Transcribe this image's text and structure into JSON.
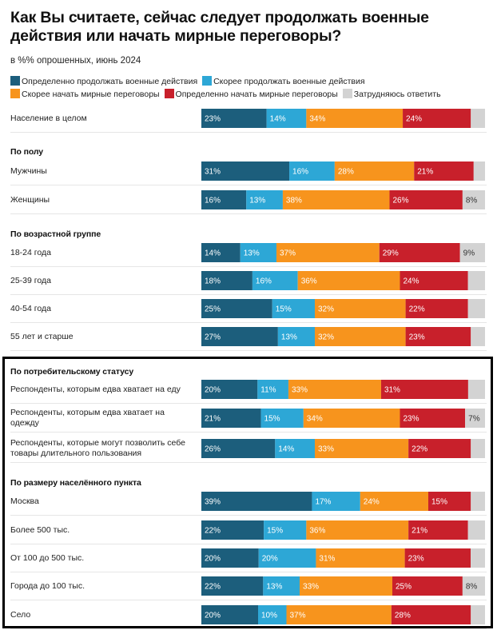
{
  "chart_data": {
    "type": "bar",
    "orientation": "horizontal",
    "stacked": true,
    "title": "Как Вы считаете, сейчас следует продолжать военные действия или начать мирные переговоры?",
    "subtitle": "в %% опрошенных, июнь 2024",
    "xlim": [
      0,
      100
    ],
    "grid": false,
    "legend_position": "top",
    "series": [
      {
        "name": "Определенно продолжать военные действия",
        "color": "#1c5e7c"
      },
      {
        "name": "Скорее продолжать военные действия",
        "color": "#2da7d6"
      },
      {
        "name": "Скорее начать мирные переговоры",
        "color": "#f7941d"
      },
      {
        "name": "Определенно начать мирные переговоры",
        "color": "#c8202b"
      },
      {
        "name": "Затрудняюсь ответить",
        "color": "#d3d3d3"
      }
    ],
    "groups": [
      {
        "title": "",
        "rows": [
          {
            "label": "Население в целом",
            "values": [
              23,
              14,
              34,
              24,
              5
            ],
            "labels": [
              "23%",
              "14%",
              "34%",
              "24%",
              ""
            ]
          }
        ]
      },
      {
        "title": "По полу",
        "rows": [
          {
            "label": "Мужчины",
            "values": [
              31,
              16,
              28,
              21,
              4
            ],
            "labels": [
              "31%",
              "16%",
              "28%",
              "21%",
              ""
            ]
          },
          {
            "label": "Женщины",
            "values": [
              16,
              13,
              38,
              26,
              8
            ],
            "labels": [
              "16%",
              "13%",
              "38%",
              "26%",
              "8%"
            ]
          }
        ]
      },
      {
        "title": "По возрастной группе",
        "rows": [
          {
            "label": "18-24 года",
            "values": [
              14,
              13,
              37,
              29,
              9
            ],
            "labels": [
              "14%",
              "13%",
              "37%",
              "29%",
              "9%"
            ]
          },
          {
            "label": "25-39 года",
            "values": [
              18,
              16,
              36,
              24,
              6
            ],
            "labels": [
              "18%",
              "16%",
              "36%",
              "24%",
              ""
            ]
          },
          {
            "label": "40-54 года",
            "values": [
              25,
              15,
              32,
              22,
              6
            ],
            "labels": [
              "25%",
              "15%",
              "32%",
              "22%",
              ""
            ]
          },
          {
            "label": "55 лет и старше",
            "values": [
              27,
              13,
              32,
              23,
              5
            ],
            "labels": [
              "27%",
              "13%",
              "32%",
              "23%",
              ""
            ]
          }
        ]
      },
      {
        "title": "По потребительскому статусу",
        "rows": [
          {
            "label": "Респонденты, которым едва хватает на еду",
            "values": [
              20,
              11,
              33,
              31,
              6
            ],
            "labels": [
              "20%",
              "11%",
              "33%",
              "31%",
              ""
            ]
          },
          {
            "label": "Респонденты, которым едва хватает на одежду",
            "values": [
              21,
              15,
              34,
              23,
              7
            ],
            "labels": [
              "21%",
              "15%",
              "34%",
              "23%",
              "7%"
            ]
          },
          {
            "label": "Респонденты, которые могут позволить себе товары длительного пользования",
            "values": [
              26,
              14,
              33,
              22,
              5
            ],
            "labels": [
              "26%",
              "14%",
              "33%",
              "22%",
              ""
            ]
          }
        ]
      },
      {
        "title": "По размеру населённого пункта",
        "rows": [
          {
            "label": "Москва",
            "values": [
              39,
              17,
              24,
              15,
              5
            ],
            "labels": [
              "39%",
              "17%",
              "24%",
              "15%",
              ""
            ]
          },
          {
            "label": "Более 500 тыс.",
            "values": [
              22,
              15,
              36,
              21,
              6
            ],
            "labels": [
              "22%",
              "15%",
              "36%",
              "21%",
              ""
            ]
          },
          {
            "label": "От 100 до 500 тыс.",
            "values": [
              20,
              20,
              31,
              23,
              5
            ],
            "labels": [
              "20%",
              "20%",
              "31%",
              "23%",
              ""
            ]
          },
          {
            "label": "Города до 100 тыс.",
            "values": [
              22,
              13,
              33,
              25,
              8
            ],
            "labels": [
              "22%",
              "13%",
              "33%",
              "25%",
              "8%"
            ]
          },
          {
            "label": "Село",
            "values": [
              20,
              10,
              37,
              28,
              5
            ],
            "labels": [
              "20%",
              "10%",
              "37%",
              "28%",
              ""
            ]
          }
        ]
      }
    ]
  }
}
